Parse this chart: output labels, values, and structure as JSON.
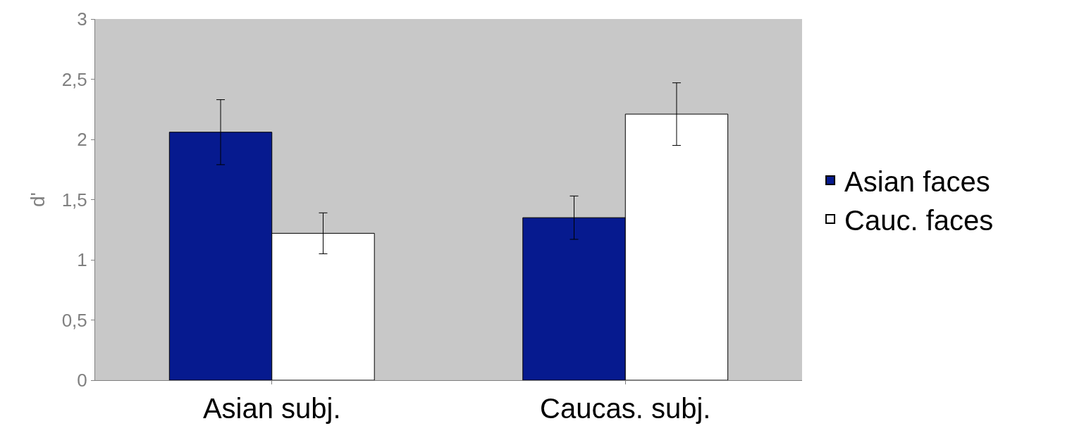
{
  "chart_data": {
    "type": "bar",
    "ylabel": "d'",
    "categories": [
      "Asian subj.",
      "Caucas. subj."
    ],
    "series": [
      {
        "name": "Asian faces",
        "color": "#061a8f",
        "values": [
          2.06,
          1.35
        ],
        "errors": [
          0.27,
          0.18
        ]
      },
      {
        "name": "Cauc. faces",
        "color": "#ffffff",
        "values": [
          1.22,
          2.21
        ],
        "errors": [
          0.17,
          0.26
        ]
      }
    ],
    "ylim": [
      0,
      3
    ],
    "yticks": [
      0,
      {
        "value": 0.5,
        "label": "0,5"
      },
      1,
      {
        "value": 1.5,
        "label": "1,5"
      },
      2,
      {
        "value": 2.5,
        "label": "2,5"
      },
      3
    ],
    "grid": false,
    "legend": "right"
  }
}
